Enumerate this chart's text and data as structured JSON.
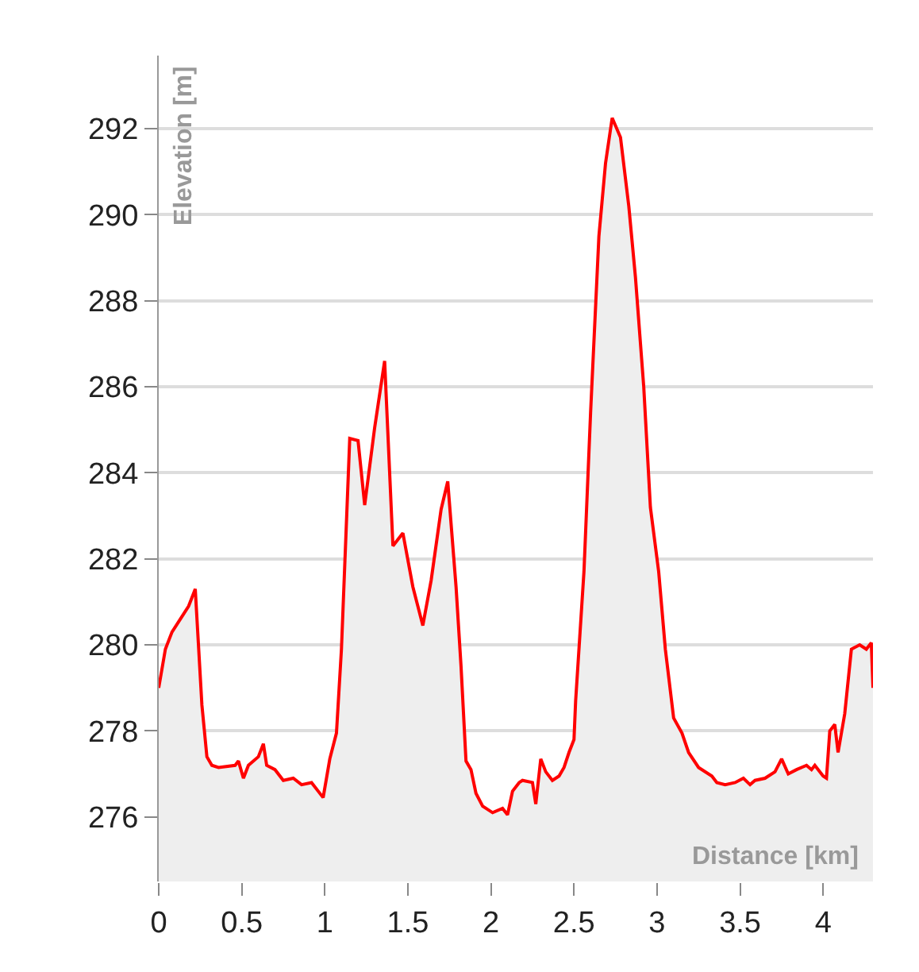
{
  "chart_data": {
    "type": "area",
    "xlabel": "Distance [km]",
    "ylabel": "Elevation [m]",
    "x": [
      0,
      0.04,
      0.08,
      0.13,
      0.18,
      0.22,
      0.26,
      0.29,
      0.32,
      0.36,
      0.46,
      0.48,
      0.51,
      0.54,
      0.6,
      0.63,
      0.65,
      0.7,
      0.75,
      0.81,
      0.86,
      0.92,
      0.99,
      1.03,
      1.07,
      1.1,
      1.15,
      1.2,
      1.24,
      1.3,
      1.36,
      1.41,
      1.47,
      1.53,
      1.59,
      1.64,
      1.7,
      1.74,
      1.79,
      1.82,
      1.85,
      1.88,
      1.91,
      1.95,
      2.01,
      2.07,
      2.1,
      2.13,
      2.17,
      2.19,
      2.25,
      2.27,
      2.3,
      2.33,
      2.37,
      2.41,
      2.44,
      2.47,
      2.5,
      2.51,
      2.56,
      2.6,
      2.65,
      2.69,
      2.73,
      2.78,
      2.83,
      2.87,
      2.92,
      2.96,
      3.01,
      3.05,
      3.1,
      3.15,
      3.19,
      3.25,
      3.33,
      3.36,
      3.41,
      3.47,
      3.52,
      3.56,
      3.59,
      3.65,
      3.71,
      3.75,
      3.79,
      3.84,
      3.9,
      3.93,
      3.95,
      4.0,
      4.02,
      4.04,
      4.07,
      4.09,
      4.13,
      4.17,
      4.22,
      4.26,
      4.29,
      4.3
    ],
    "series": [
      {
        "color": "#ff0000",
        "values": [
          279.0,
          279.9,
          280.3,
          280.6,
          280.9,
          281.3,
          278.6,
          277.4,
          277.2,
          277.15,
          277.2,
          277.3,
          276.9,
          277.2,
          277.4,
          277.7,
          277.2,
          277.1,
          276.85,
          276.9,
          276.75,
          276.8,
          276.45,
          277.35,
          277.95,
          279.9,
          284.8,
          284.75,
          283.25,
          285.05,
          286.6,
          282.3,
          282.6,
          281.35,
          280.45,
          281.5,
          283.15,
          283.8,
          281.35,
          279.5,
          277.3,
          277.1,
          276.55,
          276.25,
          276.1,
          276.2,
          276.05,
          276.6,
          276.8,
          276.85,
          276.8,
          276.3,
          277.35,
          277.05,
          276.85,
          276.95,
          277.15,
          277.5,
          277.8,
          278.7,
          281.7,
          285.4,
          289.5,
          291.2,
          292.25,
          291.8,
          290.2,
          288.55,
          286.0,
          283.2,
          281.7,
          279.9,
          278.3,
          277.95,
          277.5,
          277.15,
          276.95,
          276.8,
          276.75,
          276.8,
          276.9,
          276.75,
          276.85,
          276.9,
          277.05,
          277.35,
          277.0,
          277.1,
          277.2,
          277.1,
          277.2,
          276.95,
          276.9,
          278.0,
          278.15,
          277.5,
          278.4,
          279.9,
          280.0,
          279.9,
          280.05,
          279.0
        ]
      }
    ],
    "xlim": [
      0,
      4.3
    ],
    "ylim": [
      274.5,
      293.7
    ],
    "xticks": [
      0,
      0.5,
      1,
      1.5,
      2,
      2.5,
      3,
      3.5,
      4
    ],
    "yticks": [
      276,
      278,
      280,
      282,
      284,
      286,
      288,
      290,
      292
    ],
    "grid": "y",
    "marker": "none",
    "line_style": "solid"
  }
}
